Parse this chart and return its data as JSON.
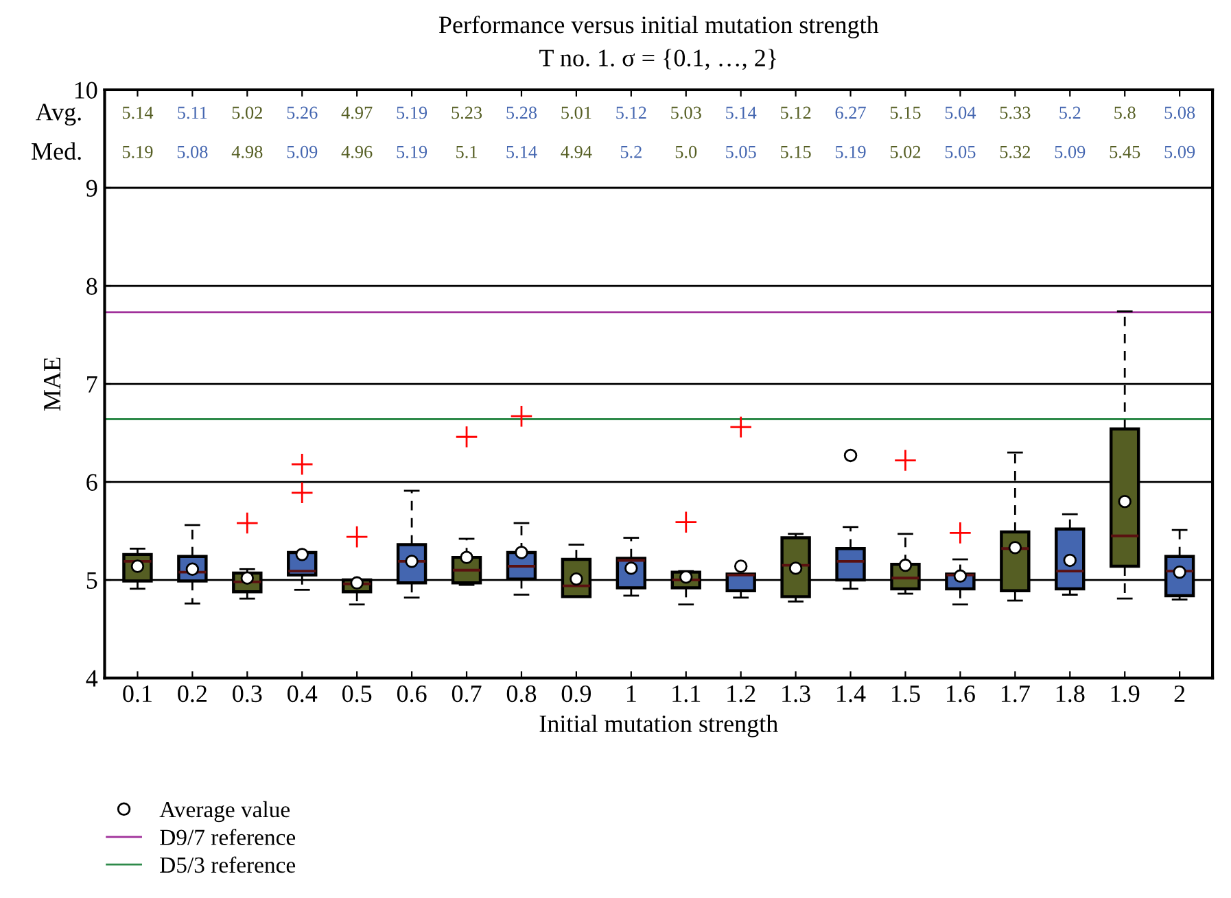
{
  "chart_data": {
    "type": "box",
    "title": "Performance versus initial mutation strength",
    "subtitle": "T no. 1. σ = {0.1, …, 2}",
    "xlabel": "Initial mutation strength",
    "ylabel": "MAE",
    "categories": [
      "0.1",
      "0.2",
      "0.3",
      "0.4",
      "0.5",
      "0.6",
      "0.7",
      "0.8",
      "0.9",
      "1",
      "1.1",
      "1.2",
      "1.3",
      "1.4",
      "1.5",
      "1.6",
      "1.7",
      "1.8",
      "1.9",
      "2"
    ],
    "series": [
      {
        "name": "Average value",
        "colors": [
          "#555e23",
          "#4466b0",
          "#555e23",
          "#4466b0",
          "#555e23",
          "#4466b0",
          "#555e23",
          "#4466b0",
          "#555e23",
          "#4466b0",
          "#555e23",
          "#4466b0",
          "#555e23",
          "#4466b0",
          "#555e23",
          "#4466b0",
          "#555e23",
          "#4466b0",
          "#555e23",
          "#4466b0"
        ],
        "boxes": [
          {
            "low": 4.91,
            "q1": 4.99,
            "median": 5.19,
            "q3": 5.26,
            "high": 5.32,
            "mean": 5.14
          },
          {
            "low": 4.76,
            "q1": 4.99,
            "median": 5.08,
            "q3": 5.24,
            "high": 5.56,
            "mean": 5.11
          },
          {
            "low": 4.81,
            "q1": 4.88,
            "median": 4.98,
            "q3": 5.07,
            "high": 5.11,
            "mean": 5.02,
            "outliers": [
              5.58
            ]
          },
          {
            "low": 4.9,
            "q1": 5.05,
            "median": 5.09,
            "q3": 5.28,
            "high": 5.28,
            "mean": 5.26,
            "outliers": [
              5.89,
              6.18
            ]
          },
          {
            "low": 4.75,
            "q1": 4.88,
            "median": 4.96,
            "q3": 5.0,
            "high": 5.0,
            "mean": 4.97,
            "outliers": [
              5.44
            ]
          },
          {
            "low": 4.82,
            "q1": 4.97,
            "median": 5.19,
            "q3": 5.36,
            "high": 5.91,
            "mean": 5.19
          },
          {
            "low": 4.95,
            "q1": 4.97,
            "median": 5.1,
            "q3": 5.23,
            "high": 5.42,
            "mean": 5.23,
            "outliers": [
              6.46
            ]
          },
          {
            "low": 4.85,
            "q1": 5.01,
            "median": 5.14,
            "q3": 5.28,
            "high": 5.58,
            "mean": 5.28,
            "outliers": [
              6.67
            ]
          },
          {
            "low": 4.83,
            "q1": 4.83,
            "median": 4.94,
            "q3": 5.21,
            "high": 5.36,
            "mean": 5.01
          },
          {
            "low": 4.84,
            "q1": 4.92,
            "median": 5.2,
            "q3": 5.22,
            "high": 5.43,
            "mean": 5.12
          },
          {
            "low": 4.75,
            "q1": 4.92,
            "median": 5.0,
            "q3": 5.08,
            "high": 5.09,
            "mean": 5.03,
            "outliers": [
              5.59
            ]
          },
          {
            "low": 4.82,
            "q1": 4.89,
            "median": 5.05,
            "q3": 5.06,
            "high": 5.06,
            "mean": 5.14,
            "outliers": [
              6.56
            ]
          },
          {
            "low": 4.78,
            "q1": 4.83,
            "median": 5.15,
            "q3": 5.43,
            "high": 5.47,
            "mean": 5.12
          },
          {
            "low": 4.91,
            "q1": 5.0,
            "median": 5.19,
            "q3": 5.32,
            "high": 5.54,
            "mean": 6.27
          },
          {
            "low": 4.86,
            "q1": 4.91,
            "median": 5.02,
            "q3": 5.16,
            "high": 5.47,
            "mean": 5.15,
            "outliers": [
              6.22
            ]
          },
          {
            "low": 4.75,
            "q1": 4.91,
            "median": 5.05,
            "q3": 5.06,
            "high": 5.21,
            "mean": 5.04,
            "outliers": [
              5.48
            ]
          },
          {
            "low": 4.79,
            "q1": 4.89,
            "median": 5.32,
            "q3": 5.49,
            "high": 6.3,
            "mean": 5.33
          },
          {
            "low": 4.85,
            "q1": 4.91,
            "median": 5.09,
            "q3": 5.52,
            "high": 5.67,
            "mean": 5.2
          },
          {
            "low": 4.81,
            "q1": 5.14,
            "median": 5.45,
            "q3": 6.54,
            "high": 7.74,
            "mean": 5.8
          },
          {
            "low": 4.8,
            "q1": 4.84,
            "median": 5.09,
            "q3": 5.24,
            "high": 5.51,
            "mean": 5.08
          }
        ]
      }
    ],
    "ylim": [
      4,
      10
    ],
    "yticks": [
      4,
      5,
      6,
      7,
      8,
      9,
      10
    ],
    "grid": "y",
    "marker": "circle",
    "legend": "bottom left",
    "annotations": [
      "Avg.",
      "5.14",
      "5.11",
      "5.02",
      "5.26",
      "4.97",
      "5.19",
      "5.23",
      "5.28",
      "5.01",
      "5.12",
      "5.03",
      "5.14",
      "5.12",
      "6.27",
      "5.15",
      "5.04",
      "5.33",
      "5.2",
      "5.8",
      "5.08",
      "Med.",
      "5.19",
      "5.08",
      "4.98",
      "5.09",
      "4.96",
      "5.19",
      "5.1",
      "5.14",
      "4.94",
      "5.2",
      "5.0",
      "5.05",
      "5.15",
      "5.19",
      "5.02",
      "5.05",
      "5.32",
      "5.09",
      "5.45",
      "5.09"
    ],
    "ref_lines": [
      {
        "axis": "y",
        "value": 7.73,
        "label": "D9/7 reference",
        "color": "#a0309a"
      },
      {
        "axis": "y",
        "value": 6.64,
        "label": "D5/3 reference",
        "color": "#2e8a4a"
      }
    ]
  }
}
